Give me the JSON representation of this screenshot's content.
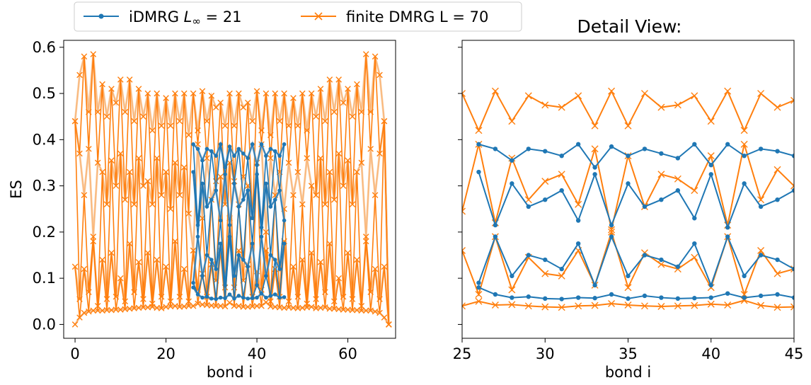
{
  "legend": {
    "entries": [
      {
        "label_prefix": "iDMRG ",
        "label_symbol": "L",
        "label_sub": "∞",
        "label_suffix": " = 21",
        "color": "#1f77b4",
        "marker": "dot"
      },
      {
        "label": "finite DMRG L = 70",
        "color": "#ff7f0e",
        "marker": "x"
      }
    ]
  },
  "colors": {
    "idmrg": "#1f77b4",
    "finite": "#ff7f0e",
    "finite_faded": "#f6c99d",
    "idmrg_faded": "#7da7c7"
  },
  "chart_data": [
    {
      "type": "line",
      "title": "",
      "xlabel": "bond i",
      "ylabel": "ES",
      "xlim": [
        -2.5,
        70.5
      ],
      "ylim": [
        -0.03,
        0.615
      ],
      "xticks": [
        0,
        20,
        40,
        60
      ],
      "yticks": [
        0.0,
        0.1,
        0.2,
        0.3,
        0.4,
        0.5,
        0.6
      ],
      "ytick_labels": [
        "0.0",
        "0.1",
        "0.2",
        "0.3",
        "0.4",
        "0.5",
        "0.6"
      ],
      "series": [
        {
          "name": "finite DMRG L = 70",
          "marker": "x",
          "x_start": 0,
          "levels": [
            [
              0.0,
              0.015,
              0.025,
              0.028,
              0.03,
              0.03,
              0.03,
              0.031,
              0.031,
              0.032,
              0.032,
              0.033,
              0.034,
              0.035,
              0.036,
              0.037,
              0.037,
              0.038,
              0.036,
              0.035,
              0.038,
              0.039,
              0.04,
              0.038,
              0.039,
              0.04,
              0.04,
              0.045,
              0.043,
              0.042,
              0.041,
              0.04,
              0.04,
              0.039,
              0.047,
              0.04,
              0.04,
              0.038,
              0.038,
              0.039,
              0.04,
              0.04,
              0.048,
              0.039,
              0.038,
              0.037,
              0.036,
              0.037,
              0.036,
              0.035,
              0.036,
              0.037,
              0.038,
              0.035,
              0.036,
              0.037,
              0.034,
              0.034,
              0.033,
              0.032,
              0.032,
              0.031,
              0.031,
              0.03,
              0.03,
              0.03,
              0.028,
              0.025,
              0.015,
              0.0
            ],
            [
              0.125,
              0.055,
              0.12,
              0.07,
              0.18,
              0.04,
              0.14,
              0.055,
              0.155,
              0.06,
              0.1,
              0.05,
              0.175,
              0.07,
              0.135,
              0.055,
              0.155,
              0.045,
              0.14,
              0.06,
              0.125,
              0.05,
              0.18,
              0.06,
              0.12,
              0.05,
              0.16,
              0.075,
              0.11,
              0.06,
              0.13,
              0.095,
              0.16,
              0.08,
              0.23,
              0.08,
              0.16,
              0.095,
              0.13,
              0.06,
              0.115,
              0.075,
              0.16,
              0.05,
              0.12,
              0.06,
              0.18,
              0.05,
              0.125,
              0.06,
              0.14,
              0.045,
              0.155,
              0.055,
              0.135,
              0.07,
              0.175,
              0.05,
              0.1,
              0.06,
              0.155,
              0.055,
              0.14,
              0.04,
              0.18,
              0.07,
              0.12,
              0.055,
              0.125,
              0.0
            ],
            [
              0.44,
              0.37,
              0.28,
              0.38,
              0.19,
              0.35,
              0.33,
              0.26,
              0.355,
              0.3,
              0.37,
              0.27,
              0.33,
              0.26,
              0.36,
              0.3,
              0.31,
              0.26,
              0.36,
              0.28,
              0.33,
              0.25,
              0.35,
              0.28,
              0.34,
              0.24,
              0.16,
              0.39,
              0.23,
              0.36,
              0.27,
              0.31,
              0.32,
              0.26,
              0.35,
              0.31,
              0.26,
              0.32,
              0.3,
              0.23,
              0.35,
              0.39,
              0.2,
              0.36,
              0.28,
              0.33,
              0.25,
              0.35,
              0.28,
              0.33,
              0.26,
              0.36,
              0.3,
              0.28,
              0.36,
              0.26,
              0.33,
              0.27,
              0.37,
              0.3,
              0.355,
              0.26,
              0.33,
              0.35,
              0.19,
              0.38,
              0.28,
              0.37,
              0.44,
              0.0
            ],
            [
              0.44,
              0.54,
              0.58,
              0.46,
              0.585,
              0.46,
              0.52,
              0.45,
              0.51,
              0.48,
              0.53,
              0.46,
              0.53,
              0.44,
              0.51,
              0.45,
              0.5,
              0.42,
              0.5,
              0.43,
              0.49,
              0.43,
              0.5,
              0.44,
              0.5,
              0.41,
              0.5,
              0.42,
              0.505,
              0.44,
              0.495,
              0.47,
              0.48,
              0.43,
              0.5,
              0.43,
              0.5,
              0.47,
              0.48,
              0.44,
              0.505,
              0.42,
              0.5,
              0.41,
              0.5,
              0.44,
              0.5,
              0.43,
              0.49,
              0.43,
              0.5,
              0.42,
              0.5,
              0.45,
              0.51,
              0.44,
              0.53,
              0.46,
              0.53,
              0.48,
              0.51,
              0.45,
              0.52,
              0.46,
              0.585,
              0.46,
              0.58,
              0.54,
              0.44,
              0.0
            ]
          ]
        },
        {
          "name": "iDMRG L∞ = 21",
          "marker": "dot",
          "x_start": 26,
          "levels": [
            [
              0.08,
              0.065,
              0.058,
              0.06,
              0.056,
              0.055,
              0.058,
              0.057,
              0.065,
              0.056,
              0.062,
              0.058,
              0.056,
              0.057,
              0.058,
              0.067,
              0.058,
              0.062,
              0.065,
              0.058,
              0.059
            ],
            [
              0.09,
              0.19,
              0.105,
              0.15,
              0.14,
              0.12,
              0.175,
              0.085,
              0.19,
              0.105,
              0.15,
              0.14,
              0.125,
              0.175,
              0.085,
              0.19,
              0.105,
              0.15,
              0.14,
              0.12,
              0.175
            ],
            [
              0.33,
              0.215,
              0.305,
              0.255,
              0.27,
              0.29,
              0.225,
              0.325,
              0.215,
              0.305,
              0.255,
              0.27,
              0.29,
              0.23,
              0.325,
              0.21,
              0.305,
              0.255,
              0.27,
              0.29,
              0.225
            ],
            [
              0.39,
              0.38,
              0.355,
              0.38,
              0.375,
              0.365,
              0.39,
              0.34,
              0.385,
              0.365,
              0.38,
              0.37,
              0.36,
              0.39,
              0.345,
              0.39,
              0.365,
              0.38,
              0.375,
              0.365,
              0.39
            ]
          ]
        }
      ]
    },
    {
      "type": "line",
      "title": "Detail View:",
      "xlabel": "bond i",
      "ylabel": "",
      "xlim": [
        25,
        45
      ],
      "ylim": [
        -0.03,
        0.615
      ],
      "xticks": [
        25,
        30,
        35,
        40,
        45
      ],
      "yticks": [
        0.0,
        0.1,
        0.2,
        0.3,
        0.4,
        0.5,
        0.6
      ],
      "series": [
        {
          "name": "finite DMRG L = 70",
          "marker": "x",
          "x_start": 25,
          "levels": [
            [
              0.04,
              0.05,
              0.042,
              0.043,
              0.04,
              0.038,
              0.037,
              0.04,
              0.041,
              0.045,
              0.042,
              0.04,
              0.039,
              0.04,
              0.041,
              0.044,
              0.042,
              0.052,
              0.041,
              0.037,
              0.038
            ],
            [
              0.16,
              0.065,
              0.19,
              0.075,
              0.145,
              0.11,
              0.105,
              0.16,
              0.085,
              0.2,
              0.08,
              0.155,
              0.13,
              0.12,
              0.145,
              0.08,
              0.19,
              0.065,
              0.16,
              0.11,
              0.12
            ],
            [
              0.245,
              0.39,
              0.22,
              0.36,
              0.27,
              0.31,
              0.325,
              0.26,
              0.38,
              0.205,
              0.365,
              0.255,
              0.325,
              0.315,
              0.29,
              0.365,
              0.215,
              0.39,
              0.27,
              0.335,
              0.3
            ],
            [
              0.5,
              0.42,
              0.505,
              0.44,
              0.495,
              0.475,
              0.47,
              0.495,
              0.43,
              0.505,
              0.43,
              0.5,
              0.47,
              0.475,
              0.495,
              0.44,
              0.505,
              0.42,
              0.5,
              0.47,
              0.485
            ]
          ]
        },
        {
          "name": "iDMRG L∞ = 21",
          "marker": "dot",
          "x_start": 26,
          "levels": [
            [
              0.08,
              0.065,
              0.058,
              0.06,
              0.056,
              0.055,
              0.058,
              0.057,
              0.065,
              0.056,
              0.062,
              0.058,
              0.056,
              0.057,
              0.058,
              0.067,
              0.058,
              0.062,
              0.065,
              0.058
            ],
            [
              0.09,
              0.19,
              0.105,
              0.15,
              0.14,
              0.12,
              0.175,
              0.085,
              0.19,
              0.105,
              0.15,
              0.14,
              0.125,
              0.175,
              0.085,
              0.19,
              0.105,
              0.15,
              0.14,
              0.12
            ],
            [
              0.33,
              0.215,
              0.305,
              0.255,
              0.27,
              0.29,
              0.225,
              0.325,
              0.215,
              0.305,
              0.255,
              0.27,
              0.29,
              0.23,
              0.325,
              0.21,
              0.305,
              0.255,
              0.27,
              0.29
            ],
            [
              0.39,
              0.38,
              0.355,
              0.38,
              0.375,
              0.365,
              0.39,
              0.34,
              0.385,
              0.365,
              0.38,
              0.37,
              0.36,
              0.39,
              0.345,
              0.39,
              0.365,
              0.38,
              0.375,
              0.365
            ]
          ]
        }
      ]
    }
  ]
}
